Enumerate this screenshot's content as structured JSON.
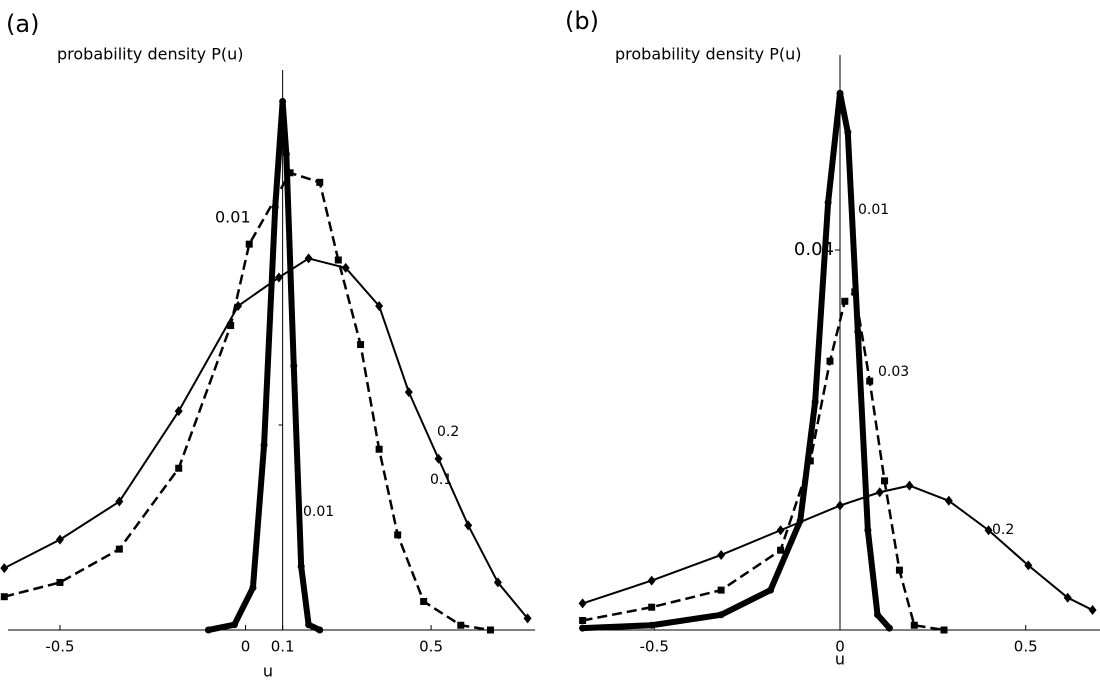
{
  "chart_data": [
    {
      "type": "line",
      "panel_label": "(a)",
      "y_label": "probability density P(u)",
      "x_label": "u",
      "xlim": [
        -0.64,
        0.78
      ],
      "ylim": [
        0,
        1.05
      ],
      "yaxis_at": 0.1,
      "xticks": [
        -0.5,
        0,
        0.1,
        0.5
      ],
      "annotations": [
        "0.01"
      ],
      "series": [
        {
          "name": "0.01",
          "marker": "circle",
          "dash": false,
          "width": 6,
          "color": "#000",
          "x": [
            -0.1,
            -0.03,
            0.02,
            0.05,
            0.08,
            0.1,
            0.11,
            0.13,
            0.15,
            0.17,
            0.2
          ],
          "values": [
            0,
            0.01,
            0.08,
            0.35,
            0.8,
            1.0,
            0.9,
            0.5,
            0.12,
            0.01,
            0
          ]
        },
        {
          "name": "0.1",
          "marker": "square",
          "dash": true,
          "width": 2.5,
          "color": "#000",
          "x": [
            -0.65,
            -0.5,
            -0.34,
            -0.18,
            -0.04,
            0.01,
            0.12,
            0.2,
            0.25,
            0.31,
            0.36,
            0.41,
            0.48,
            0.58,
            0.66
          ],
          "values": [
            0.063,
            0.09,
            0.153,
            0.306,
            0.576,
            0.73,
            0.865,
            0.847,
            0.7,
            0.54,
            0.342,
            0.18,
            0.054,
            0.009,
            0
          ]
        },
        {
          "name": "0.2",
          "marker": "diamond",
          "dash": false,
          "width": 2,
          "color": "#000",
          "x": [
            -0.65,
            -0.5,
            -0.34,
            -0.18,
            -0.02,
            0.09,
            0.17,
            0.27,
            0.36,
            0.44,
            0.52,
            0.6,
            0.68,
            0.76
          ],
          "values": [
            0.117,
            0.171,
            0.243,
            0.414,
            0.613,
            0.667,
            0.703,
            0.685,
            0.613,
            0.45,
            0.324,
            0.198,
            0.09,
            0.022
          ]
        }
      ]
    },
    {
      "type": "line",
      "panel_label": "(b)",
      "y_label": "probability density P(u)",
      "x_label": "u",
      "xlim": [
        -0.7,
        0.7
      ],
      "ylim": [
        0,
        0.06
      ],
      "yaxis_at": 0,
      "xticks": [
        -0.5,
        0,
        0.5
      ],
      "yticks": [
        0.04
      ],
      "series": [
        {
          "name": "0.01",
          "marker": "circle",
          "dash": false,
          "width": 6,
          "color": "#000",
          "x": [
            -0.693,
            -0.507,
            -0.32,
            -0.187,
            -0.107,
            -0.067,
            -0.032,
            0,
            0.021,
            0.048,
            0.075,
            0.101,
            0.133
          ],
          "values": [
            0.0002,
            0.0005,
            0.0016,
            0.0042,
            0.0115,
            0.024,
            0.045,
            0.0565,
            0.0524,
            0.0314,
            0.0105,
            0.0016,
            0.0002
          ]
        },
        {
          "name": "0.03",
          "marker": "square",
          "dash": true,
          "width": 2.5,
          "color": "#000",
          "x": [
            -0.693,
            -0.507,
            -0.32,
            -0.16,
            -0.08,
            -0.027,
            0.013,
            0.04,
            0.08,
            0.12,
            0.16,
            0.2,
            0.28
          ],
          "values": [
            0.001,
            0.0024,
            0.0042,
            0.0084,
            0.0178,
            0.0283,
            0.0346,
            0.0356,
            0.0262,
            0.0157,
            0.0063,
            0.0005,
            0
          ]
        },
        {
          "name": "0.2",
          "marker": "diamond",
          "dash": false,
          "width": 2,
          "color": "#000",
          "x": [
            -0.693,
            -0.507,
            -0.32,
            -0.16,
            0,
            0.107,
            0.187,
            0.293,
            0.4,
            0.507,
            0.613,
            0.68
          ],
          "values": [
            0.0028,
            0.0052,
            0.0079,
            0.0105,
            0.0131,
            0.0145,
            0.0152,
            0.0136,
            0.0105,
            0.0068,
            0.0034,
            0.0021
          ]
        }
      ]
    }
  ]
}
